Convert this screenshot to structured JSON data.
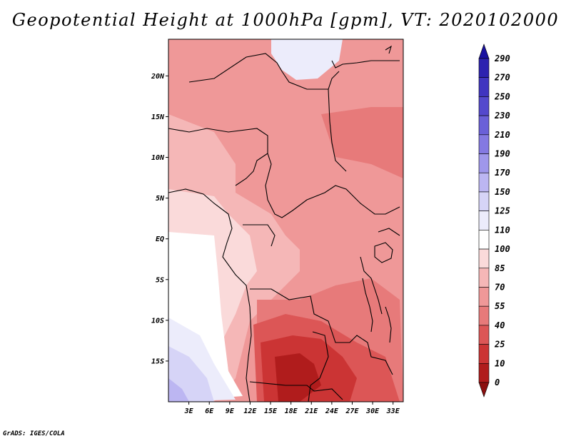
{
  "title": "Geopotential Height at 1000hPa [gpm], VT: 2020102000",
  "credit": "GrADS: IGES/COLA",
  "map": {
    "variable": "Geopotential Height",
    "level": "1000hPa",
    "units": "gpm",
    "valid_time": "2020102000",
    "lon_range": [
      0,
      34.5
    ],
    "lat_range": [
      -20,
      24.5
    ],
    "lat_ticks": [
      {
        "value": 20,
        "label": "20N"
      },
      {
        "value": 15,
        "label": "15N"
      },
      {
        "value": 10,
        "label": "10N"
      },
      {
        "value": 5,
        "label": "5N"
      },
      {
        "value": 0,
        "label": "EQ"
      },
      {
        "value": -5,
        "label": "5S"
      },
      {
        "value": -10,
        "label": "10S"
      },
      {
        "value": -15,
        "label": "15S"
      }
    ],
    "lon_ticks": [
      {
        "value": 3,
        "label": "3E"
      },
      {
        "value": 6,
        "label": "6E"
      },
      {
        "value": 9,
        "label": "9E"
      },
      {
        "value": 12,
        "label": "12E"
      },
      {
        "value": 15,
        "label": "15E"
      },
      {
        "value": 18,
        "label": "18E"
      },
      {
        "value": 21,
        "label": "21E"
      },
      {
        "value": 24,
        "label": "24E"
      },
      {
        "value": 27,
        "label": "27E"
      },
      {
        "value": 30,
        "label": "30E"
      },
      {
        "value": 33,
        "label": "33E"
      }
    ]
  },
  "colorbar": {
    "labels": [
      "290",
      "270",
      "250",
      "230",
      "210",
      "190",
      "170",
      "150",
      "125",
      "110",
      "100",
      "85",
      "70",
      "55",
      "40",
      "25",
      "10",
      "0"
    ],
    "colors": [
      "#1a12a0",
      "#2d23b0",
      "#4035c0",
      "#5449cd",
      "#6a60d8",
      "#8479e2",
      "#9f97eb",
      "#bcb6f2",
      "#d6d4f7",
      "#ececfb",
      "#ffffff",
      "#fadada",
      "#f5b7b7",
      "#ef9898",
      "#e77a7a",
      "#dc5656",
      "#cb3434",
      "#b01c1c",
      "#8c1010"
    ]
  },
  "palette": {
    "p70": "#ef9898",
    "p85": "#f5b7b7",
    "p100": "#fadada",
    "p55": "#e77a7a",
    "p40": "#dc5656",
    "p25": "#cb3434",
    "p10": "#b01c1c",
    "b110": "#ffffff",
    "b125": "#ececfb",
    "b150": "#d6d4f7",
    "b170": "#bcb6f2"
  }
}
